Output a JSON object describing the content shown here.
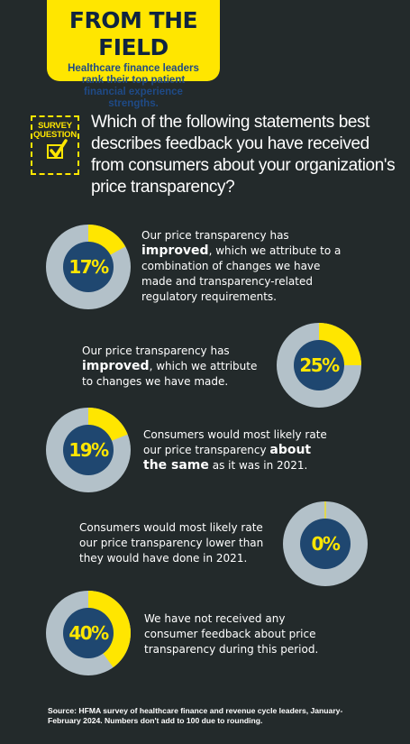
{
  "banner": {
    "title": "FROM THE FIELD",
    "subtitle": "Healthcare finance leaders rank their top patient financial experience strengths."
  },
  "survey_badge": {
    "line1": "SURVEY",
    "line2": "QUESTION"
  },
  "question": "Which of the following statements best describes feedback you have received from consumers about your organization's price transparency?",
  "colors": {
    "accent": "#ffe600",
    "ring": "#b3c1c9",
    "center": "#1f4770",
    "background": "#232a2b"
  },
  "chart_data": {
    "type": "pie",
    "categories": [
      "Our price transparency has improved, which we attribute to a combination of changes we have made and transparency-related regulatory requirements.",
      "Our price transparency has improved, which we attribute to changes we have made.",
      "Consumers would most likely rate our price transparency about the same as it was in 2021.",
      "Consumers would most likely rate our price transparency lower than they would have done in 2021.",
      "We have not received any consumer feedback about price transparency during this period."
    ],
    "values": [
      17,
      25,
      19,
      0,
      40
    ],
    "unit": "%",
    "value_labels": [
      "17%",
      "25%",
      "19%",
      "0%",
      "40%"
    ]
  },
  "statements": [
    {
      "pre": "Our price transparency has ",
      "bold": "improved",
      "post": ", which we attribute to a combination of changes we have made and transparency-related regulatory requirements."
    },
    {
      "pre": "Our price transparency has ",
      "bold": "improved",
      "post": ", which we attribute to changes we have made."
    },
    {
      "pre": "Consumers would most likely rate our price transparency ",
      "bold": "about the same",
      "post": " as it was in 2021."
    },
    {
      "pre": "Consumers would most likely rate our price transparency lower than they would have done in 2021.",
      "bold": "",
      "post": ""
    },
    {
      "pre": "We have not received any consumer feedback about price transparency during this period.",
      "bold": "",
      "post": ""
    }
  ],
  "source": "Source: HFMA survey of healthcare finance and revenue cycle leaders, January-February 2024. Numbers don't add to 100 due to rounding."
}
